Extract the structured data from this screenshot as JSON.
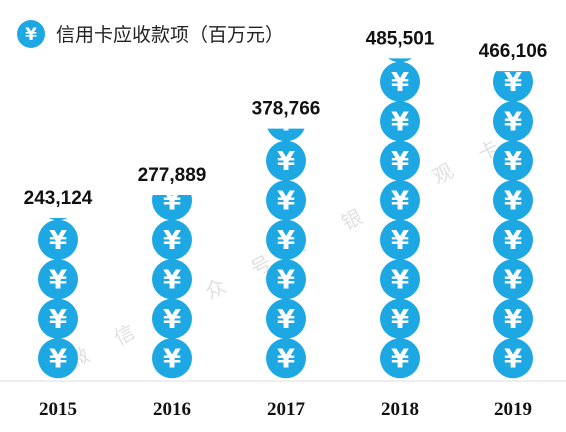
{
  "chart_data": {
    "type": "bar",
    "title": "信用卡应收款项（百万元）",
    "icon": "yen-coin-icon",
    "categories": [
      "2015",
      "2016",
      "2017",
      "2018",
      "2019"
    ],
    "values": [
      243124,
      277889,
      378766,
      485501,
      466106
    ],
    "value_labels": [
      "243,124",
      "277,889",
      "378,766",
      "485,501",
      "466,106"
    ],
    "ylim": [
      0,
      500000
    ],
    "grid": false,
    "legend": "none"
  },
  "watermark": [
    "微",
    "信",
    "公",
    "众",
    "号",
    "：",
    "银",
    "数",
    "观",
    "卡"
  ],
  "colors": {
    "coin": "#1ea8e3",
    "coin_glyph": "#ffffff",
    "baseline": "#dcdcdc",
    "text": "#111111",
    "watermark": "#d6d6d6"
  }
}
